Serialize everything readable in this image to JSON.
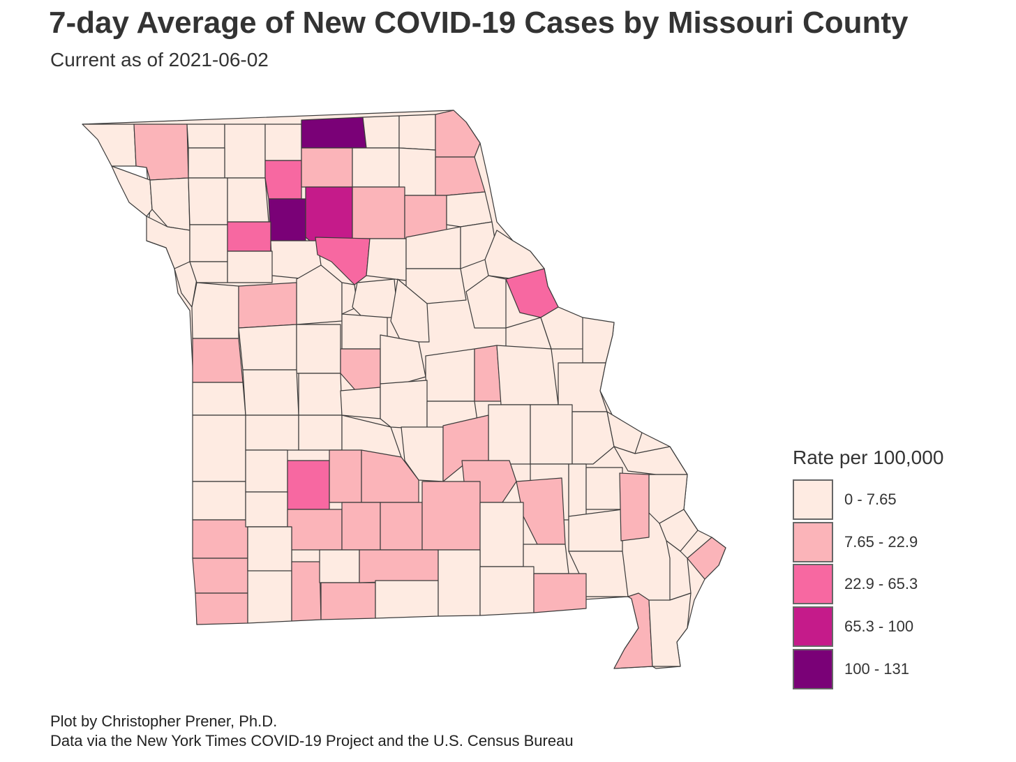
{
  "title": "7-day Average of New COVID-19 Cases by Missouri County",
  "subtitle": "Current as of 2021-06-02",
  "legend": {
    "title": "Rate per 100,000",
    "items": [
      {
        "label": "0 - 7.65",
        "color": "#FEEBE2"
      },
      {
        "label": "7.65 - 22.9",
        "color": "#FBB4B9"
      },
      {
        "label": "22.9 - 65.3",
        "color": "#F768A1"
      },
      {
        "label": "65.3 - 100",
        "color": "#C51B8A"
      },
      {
        "label": "100 - 131",
        "color": "#7A0177"
      }
    ]
  },
  "caption": {
    "line1": "Plot by Christopher Prener, Ph.D.",
    "line2": "Data via the New York Times COVID-19 Project and the U.S. Census Bureau"
  },
  "map_styles": {
    "border_color": "#3a3a3a",
    "default_fill": "#FEEBE2"
  }
}
